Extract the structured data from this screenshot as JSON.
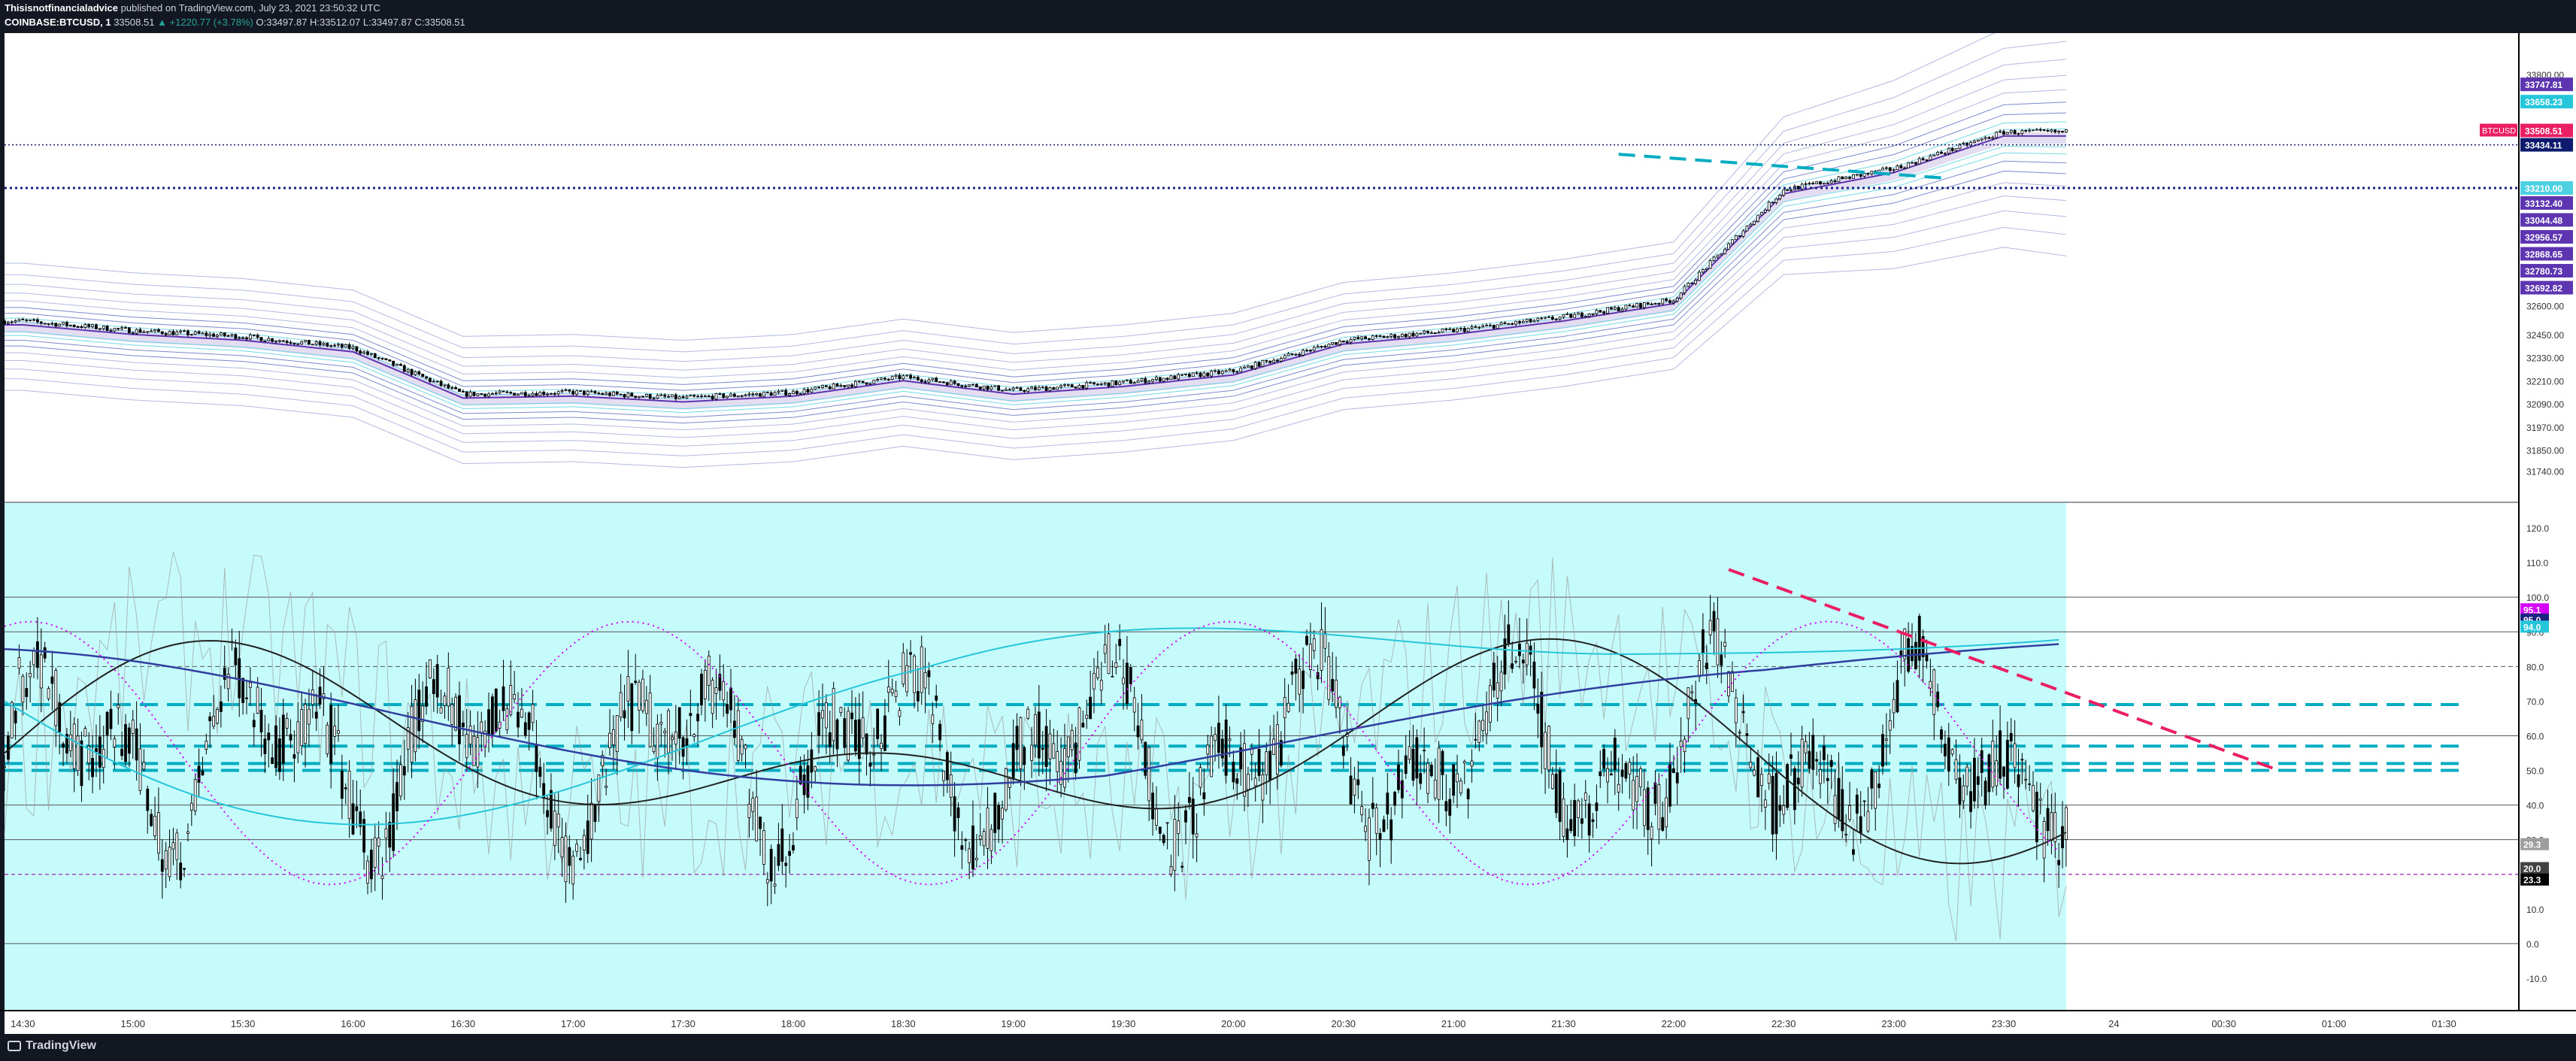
{
  "header": {
    "author": "Thisisnotfinancialadvice",
    "published": "published on TradingView.com, July 23, 2021 23:50:32 UTC",
    "symbol": "COINBASE:BTCUSD, 1",
    "last": "33508.51",
    "change": "▲ +1220.77 (+3.78%)",
    "ohlc": "O:33497.87 H:33512.07 L:33497.87 C:33508.51"
  },
  "footer": {
    "brand": "TradingView"
  },
  "colors": {
    "background": "#ffffff",
    "frame": "#131722",
    "candle": "#000000",
    "band_light": "#9fa8da",
    "band_mid": "#5c6bc0",
    "band_cyan": "#4dd0e1",
    "osc_bg": "#c6fbfb",
    "dash_cyan": "#00acc1",
    "dash_pink": "#e91e63"
  },
  "chart_data": [
    {
      "type": "line",
      "subtype": "candlestick",
      "symbol": "BTCUSD",
      "title": "",
      "x": [
        "14:30",
        "15:00",
        "15:30",
        "16:00",
        "16:30",
        "17:00",
        "17:30",
        "18:00",
        "18:30",
        "19:00",
        "19:30",
        "20:00",
        "20:30",
        "21:00",
        "21:30",
        "22:00",
        "22:30",
        "23:00",
        "23:30"
      ],
      "series": [
        {
          "name": "BTCUSD",
          "values": [
            32520,
            32470,
            32440,
            32380,
            32140,
            32150,
            32120,
            32150,
            32230,
            32160,
            32200,
            32260,
            32420,
            32470,
            32540,
            32630,
            33200,
            33310,
            33500
          ]
        }
      ],
      "xticks": [
        "14:30",
        "15:00",
        "15:30",
        "16:00",
        "16:30",
        "17:00",
        "17:30",
        "18:00",
        "18:30",
        "19:00",
        "19:30",
        "20:00",
        "20:30",
        "21:00",
        "21:30",
        "22:00",
        "22:30",
        "23:00",
        "23:30",
        "24",
        "00:30",
        "01:00",
        "01:30"
      ],
      "yticks": [
        "33800.00",
        "32600.00",
        "32450.00",
        "32330.00",
        "32210.00",
        "32090.00",
        "31970.00",
        "31850.00",
        "31740.00"
      ],
      "ylim": [
        31700,
        33850
      ],
      "price_labels": [
        {
          "text": "33747.81",
          "color": "#5e35b1"
        },
        {
          "text": "33658.23",
          "color": "#26c6da"
        },
        {
          "text": "BTCUSD",
          "color": "#e91e63"
        },
        {
          "text": "33508.51",
          "color": "#e91e63"
        },
        {
          "text": "33434.11",
          "color": "#0d1b6e"
        },
        {
          "text": "33210.00",
          "color": "#4dd0e1"
        },
        {
          "text": "33132.40",
          "color": "#5e35b1"
        },
        {
          "text": "33044.48",
          "color": "#5e35b1"
        },
        {
          "text": "32956.57",
          "color": "#5e35b1"
        },
        {
          "text": "32868.65",
          "color": "#5e35b1"
        },
        {
          "text": "32780.73",
          "color": "#5e35b1"
        },
        {
          "text": "32692.82",
          "color": "#5e35b1"
        }
      ],
      "levels": [
        33434,
        33210
      ],
      "trendline": {
        "from": [
          "21:45",
          33385
        ],
        "to": [
          "23:15",
          33260
        ]
      },
      "grid": false
    },
    {
      "type": "line",
      "subtype": "oscillator",
      "title": "",
      "yticks": [
        "120.0",
        "110.0",
        "100.0",
        "90.0",
        "80.0",
        "70.0",
        "60.0",
        "50.0",
        "40.0",
        "30.0",
        "20.0",
        "10.0",
        "0.0",
        "-10.0"
      ],
      "ylim": [
        -15,
        125
      ],
      "hlines": [
        100,
        90,
        80,
        60,
        40,
        30,
        0
      ],
      "cyan_dashed_levels": [
        69,
        57,
        52,
        50
      ],
      "value_labels": [
        {
          "text": "95.1",
          "color": "#d500f9"
        },
        {
          "text": "95.0",
          "color": "#1a237e"
        },
        {
          "text": "94.0",
          "color": "#26c6da"
        },
        {
          "text": "29.3",
          "color": "#9e9e9e"
        },
        {
          "text": "20.0",
          "color": "#424242"
        },
        {
          "text": "23.3",
          "color": "#000000"
        }
      ],
      "trendline": {
        "from": [
          "22:15",
          108
        ],
        "to": [
          "00:45",
          50
        ]
      },
      "grid": false
    }
  ]
}
